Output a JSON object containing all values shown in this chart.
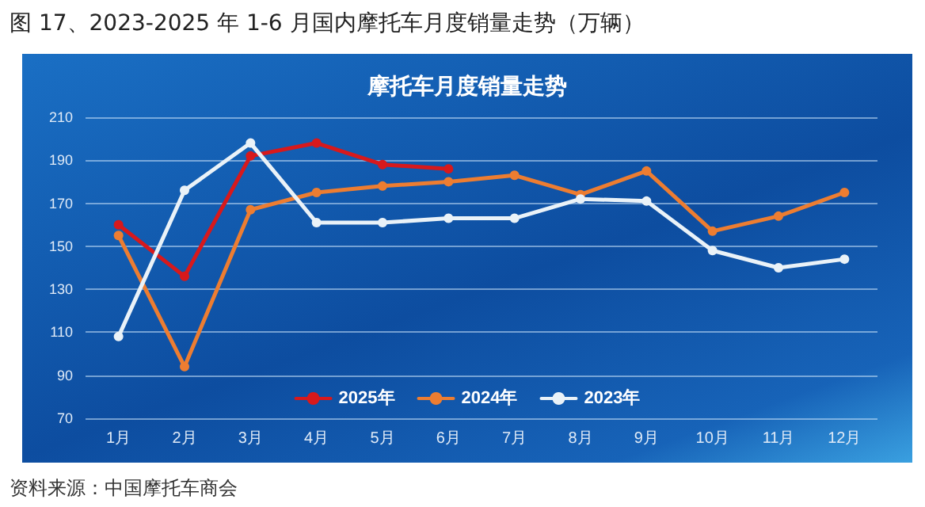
{
  "chart_data": {
    "type": "line",
    "title": "图 17、2023-2025 年 1-6 月国内摩托车月度销量走势（万辆）",
    "subtitle": "摩托车月度销量走势",
    "annotations": [
      "资料来源：中国摩托车商会"
    ],
    "categories": [
      "1月",
      "2月",
      "3月",
      "4月",
      "5月",
      "6月",
      "7月",
      "8月",
      "9月",
      "10月",
      "11月",
      "12月"
    ],
    "series": [
      {
        "name": "2025年",
        "color": "#d7191c",
        "values": [
          160,
          136,
          192,
          198,
          188,
          186,
          null,
          null,
          null,
          null,
          null,
          null
        ]
      },
      {
        "name": "2024年",
        "color": "#ed7d31",
        "values": [
          155,
          94,
          167,
          175,
          178,
          180,
          183,
          174,
          185,
          157,
          164,
          175
        ]
      },
      {
        "name": "2023年",
        "color": "#eaf2f8",
        "values": [
          108,
          176,
          198,
          161,
          161,
          163,
          163,
          172,
          171,
          148,
          140,
          144
        ]
      }
    ],
    "ylim": [
      70,
      210
    ],
    "yticks": [
      70,
      90,
      110,
      130,
      150,
      170,
      190,
      210
    ],
    "grid": "y",
    "legend": "bottom",
    "marker": "circle",
    "line_style": "solid"
  }
}
